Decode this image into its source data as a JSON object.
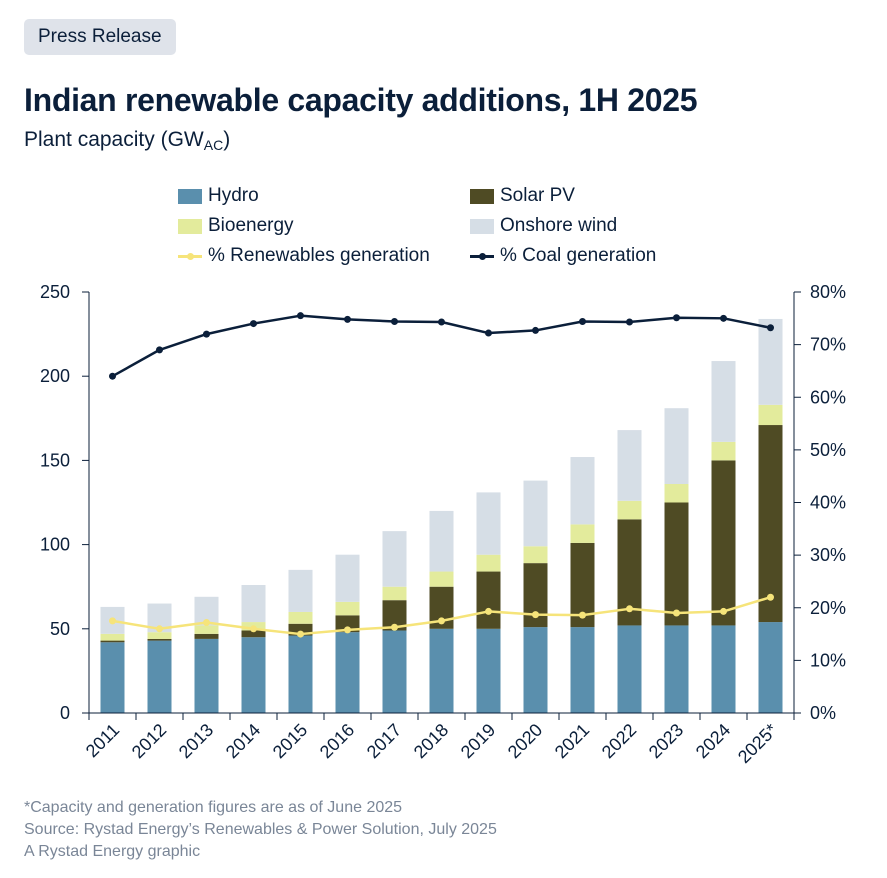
{
  "badge": "Press Release",
  "title": "Indian renewable capacity additions, 1H 2025",
  "subtitle_main": "Plant capacity (GW",
  "subtitle_sub": "AC",
  "subtitle_end": ")",
  "footer": {
    "note": "*Capacity and generation figures are as of June 2025",
    "source": "Source: Rystad Energy’s Renewables & Power Solution, July 2025",
    "credit": "A Rystad Energy graphic"
  },
  "colors": {
    "hydro": "#5a8fad",
    "solar": "#4f4b24",
    "bio": "#e3eb9c",
    "wind": "#d6dee6",
    "renew_line": "#f6e47a",
    "coal_line": "#0b1f3a",
    "axis": "#0b1f3a"
  },
  "chart_data": {
    "type": "bar",
    "categories": [
      "2011",
      "2012",
      "2013",
      "2014",
      "2015",
      "2016",
      "2017",
      "2018",
      "2019",
      "2020",
      "2021",
      "2022",
      "2023",
      "2024",
      "2025*"
    ],
    "ylim": [
      0,
      250
    ],
    "yticks": [
      "0",
      "50",
      "100",
      "150",
      "200",
      "250"
    ],
    "y2lim": [
      0,
      80
    ],
    "y2ticks": [
      "0%",
      "10%",
      "20%",
      "30%",
      "40%",
      "50%",
      "60%",
      "70%",
      "80%"
    ],
    "series": [
      {
        "name": "Hydro",
        "type": "stacked-bar",
        "values": [
          42,
          43,
          44,
          45,
          46,
          48,
          49,
          50,
          50,
          51,
          51,
          52,
          52,
          52,
          54
        ]
      },
      {
        "name": "Solar PV",
        "type": "stacked-bar",
        "values": [
          1,
          1,
          3,
          4,
          7,
          10,
          18,
          25,
          34,
          38,
          50,
          63,
          73,
          98,
          117
        ]
      },
      {
        "name": "Bioenergy",
        "type": "stacked-bar",
        "values": [
          4,
          4,
          5,
          5,
          7,
          8,
          8,
          9,
          10,
          10,
          11,
          11,
          11,
          11,
          12
        ]
      },
      {
        "name": "Onshore wind",
        "type": "stacked-bar",
        "values": [
          16,
          17,
          17,
          22,
          25,
          28,
          33,
          36,
          37,
          39,
          40,
          42,
          45,
          48,
          51
        ]
      },
      {
        "name": "% Renewables generation",
        "type": "line",
        "axis": "right",
        "values": [
          17.5,
          16.0,
          17.2,
          16.0,
          15.0,
          15.8,
          16.3,
          17.5,
          19.3,
          18.7,
          18.6,
          19.8,
          19.0,
          19.3,
          22.0
        ]
      },
      {
        "name": "% Coal generation",
        "type": "line",
        "axis": "right",
        "values": [
          64.0,
          69.0,
          72.0,
          74.0,
          75.5,
          74.8,
          74.4,
          74.3,
          72.2,
          72.7,
          74.4,
          74.3,
          75.1,
          75.0,
          73.2
        ]
      }
    ]
  }
}
